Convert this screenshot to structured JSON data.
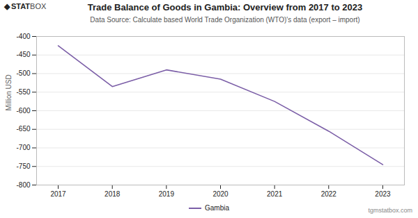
{
  "chart_data": {
    "type": "line",
    "title": "Trade Balance of Goods in Gambia: Overview from 2017 to 2023",
    "subtitle": "Data Source: Calculate based World Trade Organization (WTO)'s data (export – import)",
    "ylabel": "Million USD",
    "x": [
      2017,
      2018,
      2019,
      2020,
      2021,
      2022,
      2023
    ],
    "series": [
      {
        "name": "Gambia",
        "color": "#7B5EA7",
        "values": [
          -425,
          -535,
          -490,
          -515,
          -575,
          -655,
          -745
        ]
      }
    ],
    "xlim": [
      2016.6,
      2023.4
    ],
    "xticks": [
      2017,
      2018,
      2019,
      2020,
      2021,
      2022,
      2023
    ],
    "ylim": [
      -800,
      -400
    ],
    "yticks": [
      -800,
      -750,
      -700,
      -650,
      -600,
      -550,
      -500,
      -450,
      -400
    ],
    "grid": true,
    "legend": "bottom",
    "annotations": [
      "◆",
      "STAT",
      "BOX",
      "tgmstatbox.com"
    ]
  }
}
